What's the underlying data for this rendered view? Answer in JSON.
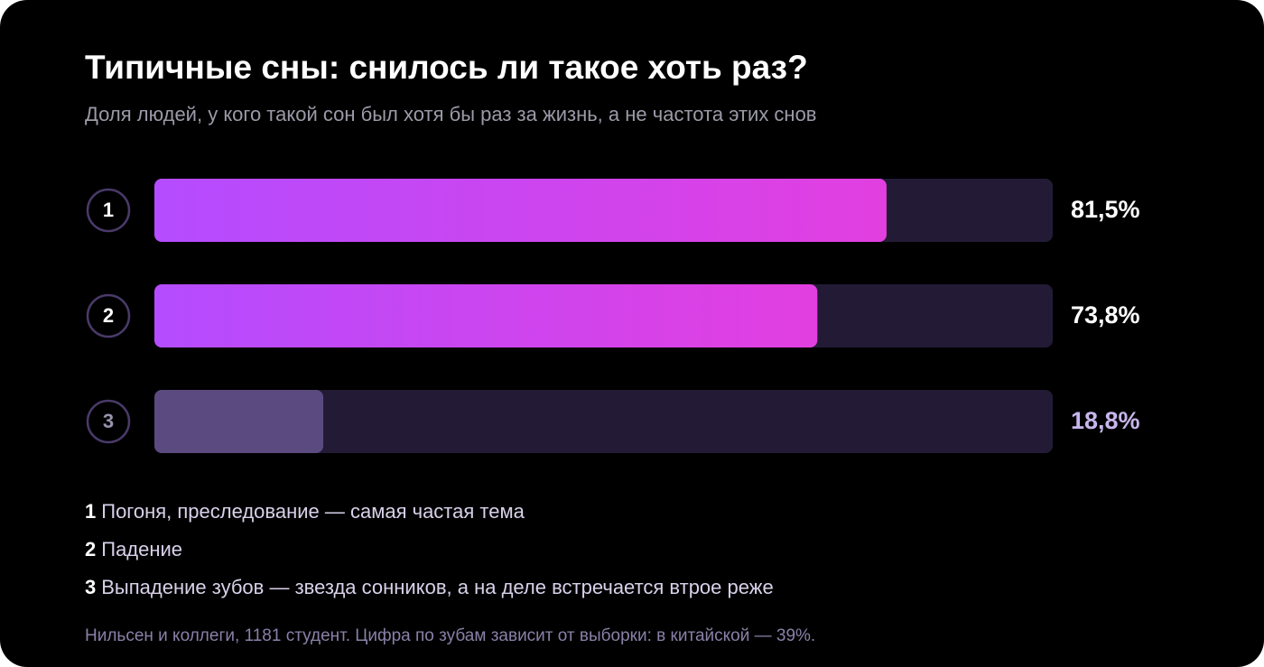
{
  "chart_data": {
    "type": "bar",
    "orientation": "horizontal",
    "title": "Типичные сны: снилось ли такое хоть раз?",
    "subtitle": "Доля людей, у кого такой сон был хотя бы раз за жизнь, а не частота этих снов",
    "categories": [
      "1",
      "2",
      "3"
    ],
    "values": [
      81.5,
      73.8,
      18.8
    ],
    "value_labels": [
      "81,5%",
      "73,8%",
      "18,8%"
    ],
    "colors": [
      "#b44cff",
      "#b44cff",
      "#5b4a80"
    ],
    "gradient_to": "#e23fe0",
    "highlight": [
      true,
      true,
      false
    ],
    "xlim": [
      0,
      100
    ],
    "notes": [
      "Погоня, преследование — самая частая тема",
      "Падение",
      "Выпадение зубов — звезда сонников, а на деле встречается втрое реже"
    ],
    "source": "Нильсен и коллеги, 1181 студент. Цифра по зубам зависит от выборки: в китайской — 39%."
  }
}
